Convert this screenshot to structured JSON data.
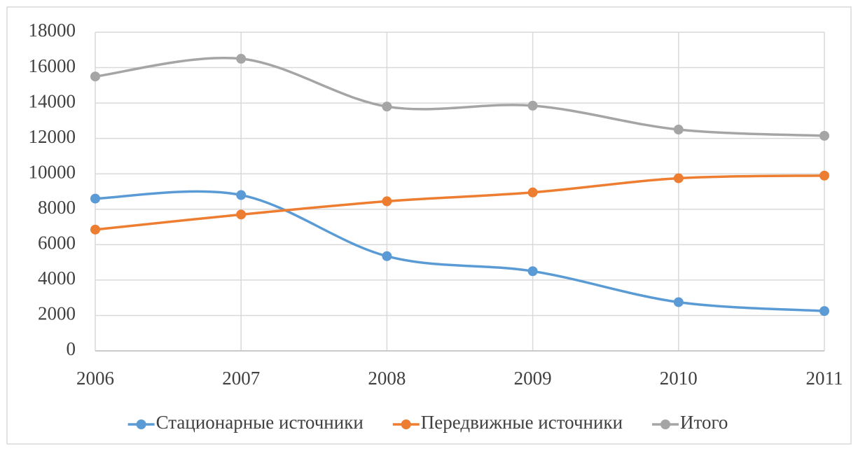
{
  "chart_data": {
    "type": "line",
    "x": [
      2006,
      2007,
      2008,
      2009,
      2010,
      2011
    ],
    "series": [
      {
        "name": "Стационарные источники",
        "color": "#5b9bd5",
        "values": [
          8600,
          8800,
          5350,
          4500,
          2750,
          2250
        ]
      },
      {
        "name": "Передвижные источники",
        "color": "#ed7d31",
        "values": [
          6850,
          7700,
          8450,
          8950,
          9750,
          9900
        ]
      },
      {
        "name": "Итого",
        "color": "#a5a5a5",
        "values": [
          15500,
          16500,
          13800,
          13850,
          12500,
          12150
        ]
      }
    ],
    "xlim": [
      2006,
      2011
    ],
    "xticks": [
      2006,
      2007,
      2008,
      2009,
      2010,
      2011
    ],
    "ylim": [
      0,
      18000
    ],
    "yticks": [
      0,
      2000,
      4000,
      6000,
      8000,
      10000,
      12000,
      14000,
      16000,
      18000
    ],
    "grid": true,
    "smooth": true,
    "legend": "bottom"
  }
}
